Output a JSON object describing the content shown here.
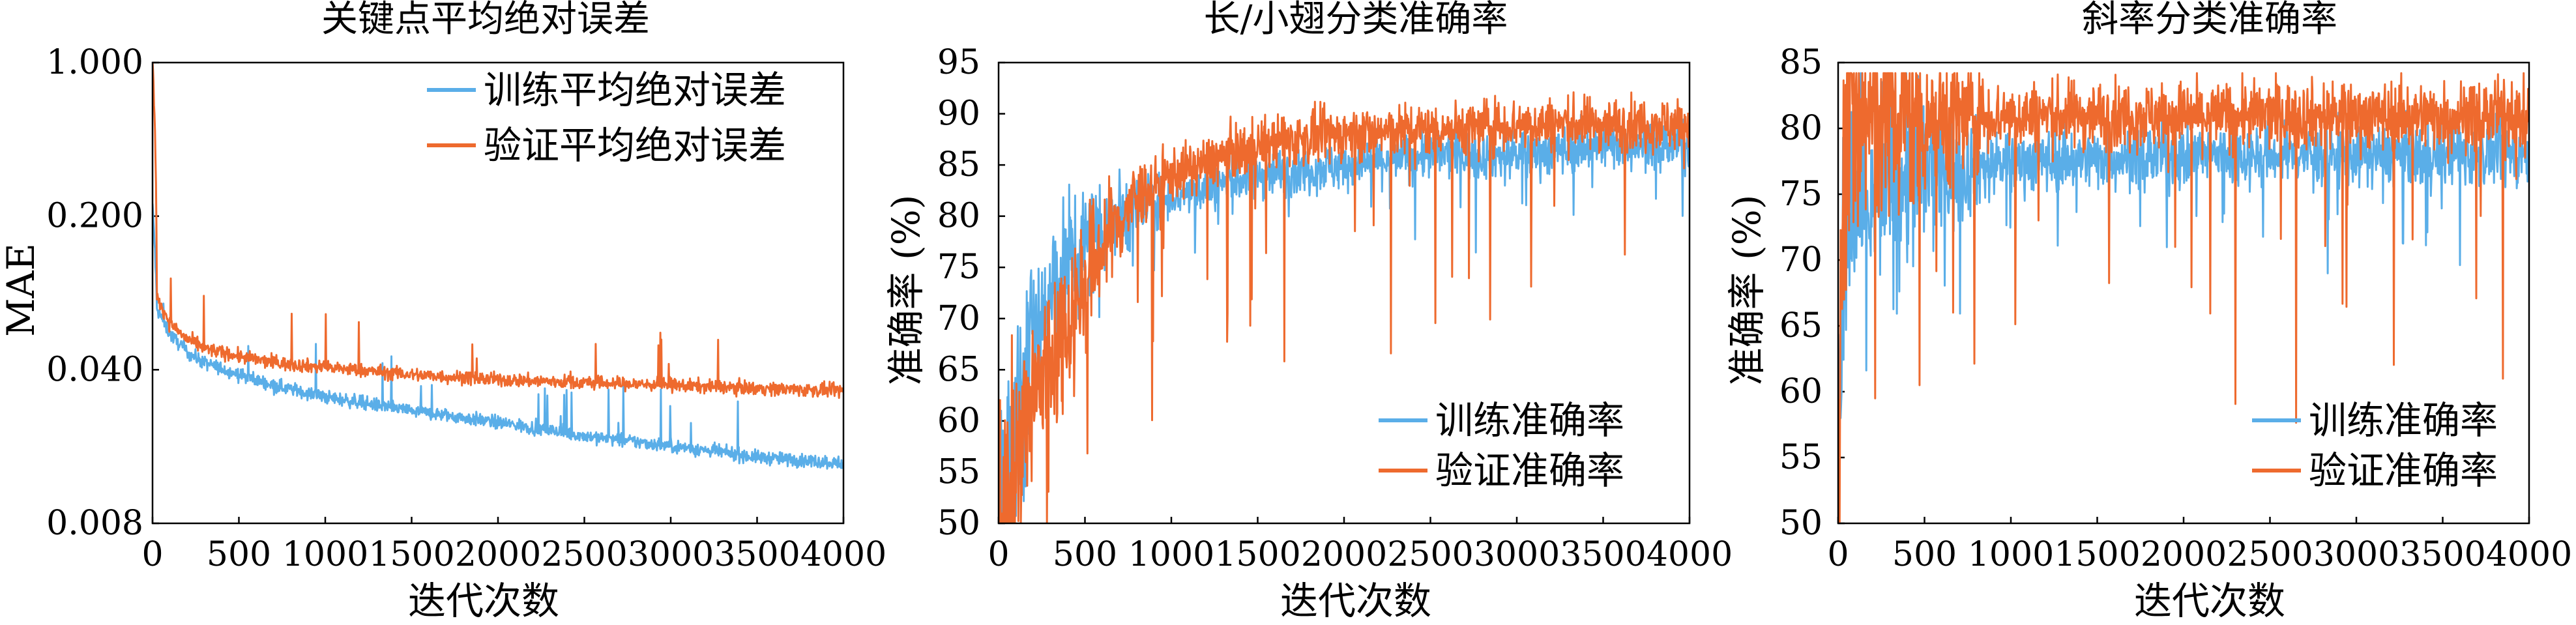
{
  "colors": {
    "train": "#5AAEE8",
    "val": "#EE6A2E"
  },
  "chart_data": [
    {
      "type": "line",
      "title": "关键点平均绝对误差",
      "xlabel": "迭代次数",
      "ylabel": "MAE",
      "xlim": [
        0,
        4000
      ],
      "ylim": [
        0.008,
        1.0
      ],
      "yscale": "log",
      "xticks": [
        "0",
        "500",
        "1000",
        "1500",
        "2000",
        "2500",
        "3000",
        "3500",
        "4000"
      ],
      "yticks": [
        "1.000",
        "0.200",
        "0.040",
        "0.008"
      ],
      "legend_position": "top-right",
      "series": [
        {
          "name": "训练平均绝对误差",
          "x": [
            0,
            25,
            100,
            200,
            300,
            500,
            700,
            1000,
            1500,
            2000,
            2500,
            3000,
            3500,
            4000
          ],
          "y": [
            0.22,
            0.075,
            0.058,
            0.048,
            0.043,
            0.038,
            0.034,
            0.03,
            0.026,
            0.023,
            0.02,
            0.018,
            0.016,
            0.015
          ]
        },
        {
          "name": "验证平均绝对误差",
          "x": [
            0,
            25,
            100,
            200,
            300,
            500,
            700,
            1000,
            1500,
            2000,
            2500,
            3000,
            3500,
            4000
          ],
          "y": [
            1.0,
            0.085,
            0.065,
            0.055,
            0.05,
            0.046,
            0.043,
            0.041,
            0.038,
            0.036,
            0.035,
            0.034,
            0.033,
            0.032
          ]
        }
      ]
    },
    {
      "type": "line",
      "title": "长/小翅分类准确率",
      "xlabel": "迭代次数",
      "ylabel": "准确率 (%)",
      "xlim": [
        0,
        4000
      ],
      "ylim": [
        50,
        95
      ],
      "xticks": [
        "0",
        "500",
        "1000",
        "1500",
        "2000",
        "2500",
        "3000",
        "3500",
        "4000"
      ],
      "yticks": [
        "50",
        "55",
        "60",
        "65",
        "70",
        "75",
        "80",
        "85",
        "90",
        "95"
      ],
      "legend_position": "bottom-right",
      "series": [
        {
          "name": "训练准确率",
          "x": [
            0,
            100,
            200,
            400,
            600,
            800,
            1000,
            1500,
            2000,
            2500,
            3000,
            3500,
            4000
          ],
          "y": [
            52,
            60,
            68,
            75,
            79,
            81,
            82,
            84,
            85,
            86,
            86,
            87,
            87
          ]
        },
        {
          "name": "验证准确率",
          "x": [
            0,
            100,
            200,
            400,
            600,
            800,
            1000,
            1500,
            2000,
            2500,
            3000,
            3500,
            4000
          ],
          "y": [
            50,
            55,
            62,
            70,
            77,
            82,
            84,
            87,
            88,
            88.5,
            89,
            89,
            89
          ]
        }
      ]
    },
    {
      "type": "line",
      "title": "斜率分类准确率",
      "xlabel": "迭代次数",
      "ylabel": "准确率 (%)",
      "xlim": [
        0,
        4000
      ],
      "ylim": [
        50,
        85
      ],
      "xticks": [
        "0",
        "500",
        "1000",
        "1500",
        "2000",
        "2500",
        "3000",
        "3500",
        "4000"
      ],
      "yticks": [
        "50",
        "55",
        "60",
        "65",
        "70",
        "75",
        "80",
        "85"
      ],
      "legend_position": "bottom-right",
      "series": [
        {
          "name": "训练准确率",
          "x": [
            0,
            30,
            100,
            300,
            700,
            1000,
            2000,
            3000,
            4000
          ],
          "y": [
            56,
            70,
            74,
            76,
            77,
            77.5,
            78,
            78,
            78
          ]
        },
        {
          "name": "验证准确率",
          "x": [
            0,
            30,
            100,
            300,
            700,
            1000,
            2000,
            3000,
            4000
          ],
          "y": [
            50,
            80,
            81,
            81,
            81,
            81,
            81,
            81,
            81
          ]
        }
      ]
    }
  ]
}
